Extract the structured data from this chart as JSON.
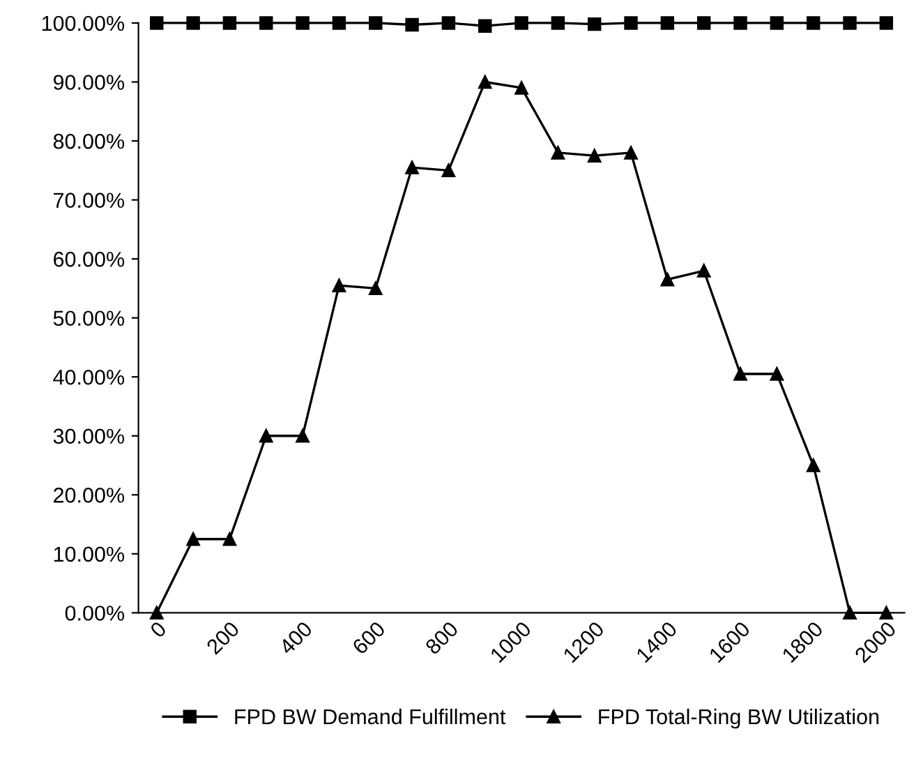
{
  "chart_data": {
    "type": "line",
    "categories": [
      "0",
      null,
      "200",
      null,
      "400",
      null,
      "600",
      null,
      "800",
      null,
      "1000",
      null,
      "1200",
      null,
      "1400",
      null,
      "1600",
      null,
      "1800",
      null,
      "2000"
    ],
    "series": [
      {
        "name": "FPD BW Demand Fulfillment",
        "color": "#000000",
        "marker": "square",
        "values": [
          100,
          100,
          100,
          100,
          100,
          100,
          100,
          99.7,
          100,
          99.5,
          100,
          100,
          99.8,
          100,
          100,
          100,
          100,
          100,
          100,
          100,
          100
        ]
      },
      {
        "name": "FPD Total-Ring BW Utilization",
        "color": "#000000",
        "marker": "triangle",
        "values": [
          0,
          12.5,
          12.5,
          30,
          30,
          55.5,
          55,
          75.5,
          75,
          90,
          89,
          78,
          77.5,
          78,
          56.5,
          58,
          40.5,
          40.5,
          25,
          0,
          0
        ]
      }
    ],
    "ylim": [
      0,
      100
    ],
    "yticks": [
      {
        "value": 0,
        "label": "0.00%"
      },
      {
        "value": 10,
        "label": "10.00%"
      },
      {
        "value": 20,
        "label": "20.00%"
      },
      {
        "value": 30,
        "label": "30.00%"
      },
      {
        "value": 40,
        "label": "40.00%"
      },
      {
        "value": 50,
        "label": "50.00%"
      },
      {
        "value": 60,
        "label": "60.00%"
      },
      {
        "value": 70,
        "label": "70.00%"
      },
      {
        "value": 80,
        "label": "80.00%"
      },
      {
        "value": 90,
        "label": "90.00%"
      },
      {
        "value": 100,
        "label": "100.00%"
      }
    ],
    "grid": false,
    "legend": "bottom",
    "line_style": "solid"
  }
}
